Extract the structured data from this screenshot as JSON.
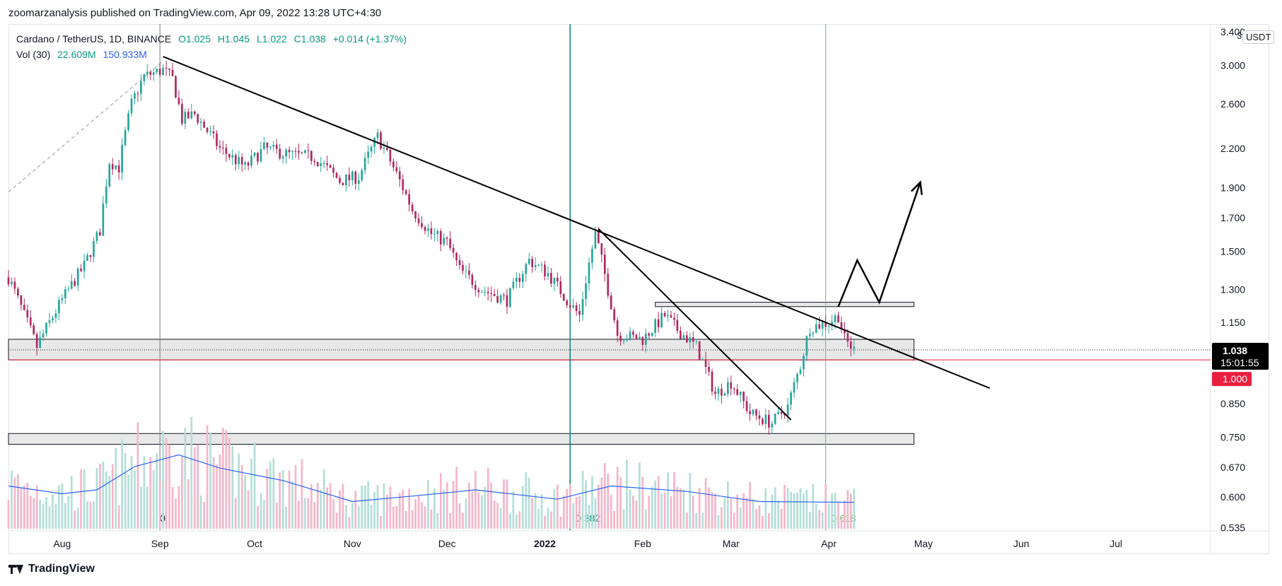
{
  "header": {
    "publish_line": "zoomarzanalysis published on TradingView.com, Apr 09, 2022 13:28 UTC+4:30"
  },
  "legend": {
    "symbol": "Cardano / TetherUS, 1D, BINANCE",
    "open": "O1.025",
    "high": "H1.045",
    "low": "L1.022",
    "close": "C1.038",
    "change": "+0.014 (+1.37%)",
    "vol_label": "Vol (30)",
    "vol_value": "22.609M",
    "vol_ma": "150.933M"
  },
  "price_axis": {
    "currency": "USDT",
    "cut_label": "3",
    "last_price": "1.038",
    "countdown": "15:01:55",
    "level_label": "1.000"
  },
  "footer": {
    "brand": "TradingView"
  },
  "colors": {
    "up": "#26a69a",
    "down": "#b2275f",
    "volume_up": "#b3ded8",
    "volume_down": "#f5b5c8",
    "vol_ma": "#2962ff",
    "teal_line": "#00897b",
    "green_line": "#66bb6a",
    "red_level": "#e91e3f",
    "zone_fill": "#d9d9d9"
  },
  "chart_data": {
    "type": "candlestick",
    "scale": "log",
    "ylim": [
      0.53,
      3.5
    ],
    "y_ticks": [
      3.4,
      3.0,
      2.6,
      2.2,
      1.9,
      1.7,
      1.5,
      1.3,
      1.15,
      0.85,
      0.75,
      0.67,
      0.6,
      0.535
    ],
    "y_tick_labels": [
      "3.400",
      "3.000",
      "2.600",
      "2.200",
      "1.900",
      "1.700",
      "1.500",
      "1.300",
      "1.150",
      "0.850",
      "0.750",
      "0.670",
      "0.600",
      "0.535"
    ],
    "x_range": [
      "2021-07-15",
      "2022-07-31"
    ],
    "x_ticks": [
      {
        "date": "2021-08-01",
        "label": "Aug"
      },
      {
        "date": "2021-09-01",
        "label": "Sep"
      },
      {
        "date": "2021-10-01",
        "label": "Oct"
      },
      {
        "date": "2021-11-01",
        "label": "Nov"
      },
      {
        "date": "2021-12-01",
        "label": "Dec"
      },
      {
        "date": "2022-01-01",
        "label": "2022"
      },
      {
        "date": "2022-02-01",
        "label": "Feb"
      },
      {
        "date": "2022-03-01",
        "label": "Mar"
      },
      {
        "date": "2022-04-01",
        "label": "Apr"
      },
      {
        "date": "2022-05-01",
        "label": "May"
      },
      {
        "date": "2022-06-01",
        "label": "Jun"
      },
      {
        "date": "2022-07-01",
        "label": "Jul"
      }
    ],
    "price_path": [
      {
        "date": "2021-07-15",
        "close": 1.36
      },
      {
        "date": "2021-07-20",
        "close": 1.18
      },
      {
        "date": "2021-07-24",
        "close": 1.05
      },
      {
        "date": "2021-08-01",
        "close": 1.25
      },
      {
        "date": "2021-08-08",
        "close": 1.42
      },
      {
        "date": "2021-08-13",
        "close": 1.62
      },
      {
        "date": "2021-08-16",
        "close": 2.1
      },
      {
        "date": "2021-08-19",
        "close": 2.05
      },
      {
        "date": "2021-08-23",
        "close": 2.6
      },
      {
        "date": "2021-08-27",
        "close": 2.88
      },
      {
        "date": "2021-09-02",
        "close": 2.95
      },
      {
        "date": "2021-09-05",
        "close": 2.85
      },
      {
        "date": "2021-09-08",
        "close": 2.45
      },
      {
        "date": "2021-09-12",
        "close": 2.5
      },
      {
        "date": "2021-09-20",
        "close": 2.2
      },
      {
        "date": "2021-09-28",
        "close": 2.05
      },
      {
        "date": "2021-10-04",
        "close": 2.2
      },
      {
        "date": "2021-10-12",
        "close": 2.15
      },
      {
        "date": "2021-10-20",
        "close": 2.13
      },
      {
        "date": "2021-10-28",
        "close": 1.95
      },
      {
        "date": "2021-11-03",
        "close": 1.98
      },
      {
        "date": "2021-11-09",
        "close": 2.3
      },
      {
        "date": "2021-11-14",
        "close": 2.05
      },
      {
        "date": "2021-11-20",
        "close": 1.75
      },
      {
        "date": "2021-11-26",
        "close": 1.6
      },
      {
        "date": "2021-12-01",
        "close": 1.55
      },
      {
        "date": "2021-12-05",
        "close": 1.4
      },
      {
        "date": "2021-12-12",
        "close": 1.3
      },
      {
        "date": "2021-12-20",
        "close": 1.25
      },
      {
        "date": "2021-12-27",
        "close": 1.45
      },
      {
        "date": "2022-01-02",
        "close": 1.38
      },
      {
        "date": "2022-01-08",
        "close": 1.25
      },
      {
        "date": "2022-01-12",
        "close": 1.18
      },
      {
        "date": "2022-01-17",
        "close": 1.6
      },
      {
        "date": "2022-01-21",
        "close": 1.3
      },
      {
        "date": "2022-01-24",
        "close": 1.1
      },
      {
        "date": "2022-02-01",
        "close": 1.08
      },
      {
        "date": "2022-02-08",
        "close": 1.18
      },
      {
        "date": "2022-02-12",
        "close": 1.12
      },
      {
        "date": "2022-02-18",
        "close": 1.05
      },
      {
        "date": "2022-02-24",
        "close": 0.88
      },
      {
        "date": "2022-03-01",
        "close": 0.92
      },
      {
        "date": "2022-03-07",
        "close": 0.82
      },
      {
        "date": "2022-03-14",
        "close": 0.79
      },
      {
        "date": "2022-03-19",
        "close": 0.84
      },
      {
        "date": "2022-03-23",
        "close": 0.98
      },
      {
        "date": "2022-03-26",
        "close": 1.13
      },
      {
        "date": "2022-04-01",
        "close": 1.15
      },
      {
        "date": "2022-04-04",
        "close": 1.18
      },
      {
        "date": "2022-04-06",
        "close": 1.08
      },
      {
        "date": "2022-04-09",
        "close": 1.038
      }
    ],
    "volume_ma_path": [
      {
        "date": "2021-07-15",
        "value": 0.55
      },
      {
        "date": "2021-08-01",
        "value": 0.45
      },
      {
        "date": "2021-08-12",
        "value": 0.5
      },
      {
        "date": "2021-08-24",
        "value": 0.8
      },
      {
        "date": "2021-09-07",
        "value": 0.95
      },
      {
        "date": "2021-09-20",
        "value": 0.78
      },
      {
        "date": "2021-10-10",
        "value": 0.62
      },
      {
        "date": "2021-11-01",
        "value": 0.35
      },
      {
        "date": "2021-11-20",
        "value": 0.42
      },
      {
        "date": "2021-12-10",
        "value": 0.5
      },
      {
        "date": "2022-01-05",
        "value": 0.38
      },
      {
        "date": "2022-01-22",
        "value": 0.55
      },
      {
        "date": "2022-02-15",
        "value": 0.48
      },
      {
        "date": "2022-03-10",
        "value": 0.35
      },
      {
        "date": "2022-04-09",
        "value": 0.34
      }
    ],
    "vertical_lines": [
      {
        "date": "2021-09-01",
        "color": "gray",
        "label": "0"
      },
      {
        "date": "2022-01-09",
        "color": "teal",
        "label": "0.382"
      },
      {
        "date": "2022-03-31",
        "color": "green",
        "label": "0.618"
      }
    ],
    "zones": [
      {
        "from_date": "2021-07-15",
        "to_date": "2022-04-28",
        "low": 1.0,
        "high": 1.08
      },
      {
        "from_date": "2022-02-05",
        "to_date": "2022-04-28",
        "low": 1.22,
        "high": 1.24
      },
      {
        "from_date": "2021-07-15",
        "to_date": "2022-04-28",
        "low": 0.73,
        "high": 0.76
      }
    ],
    "horizontal_levels": [
      {
        "price": 1.0,
        "color": "red",
        "label": "1.000"
      },
      {
        "price": 1.038,
        "color": "dotted",
        "label": "1.038"
      }
    ],
    "trendlines": [
      {
        "from": {
          "date": "2021-09-02",
          "price": 3.1
        },
        "to": {
          "date": "2022-05-22",
          "price": 0.9
        }
      },
      {
        "from": {
          "date": "2022-01-18",
          "price": 1.63
        },
        "to": {
          "date": "2022-03-20",
          "price": 0.8
        }
      },
      {
        "from": {
          "date": "2021-07-15",
          "price": 1.87
        },
        "to": {
          "date": "2021-09-02",
          "price": 3.05
        },
        "style": "dashed"
      }
    ],
    "projection": [
      {
        "date": "2022-04-04",
        "price": 1.22
      },
      {
        "date": "2022-04-10",
        "price": 1.45
      },
      {
        "date": "2022-04-17",
        "price": 1.24
      },
      {
        "date": "2022-04-30",
        "price": 1.94
      }
    ]
  }
}
